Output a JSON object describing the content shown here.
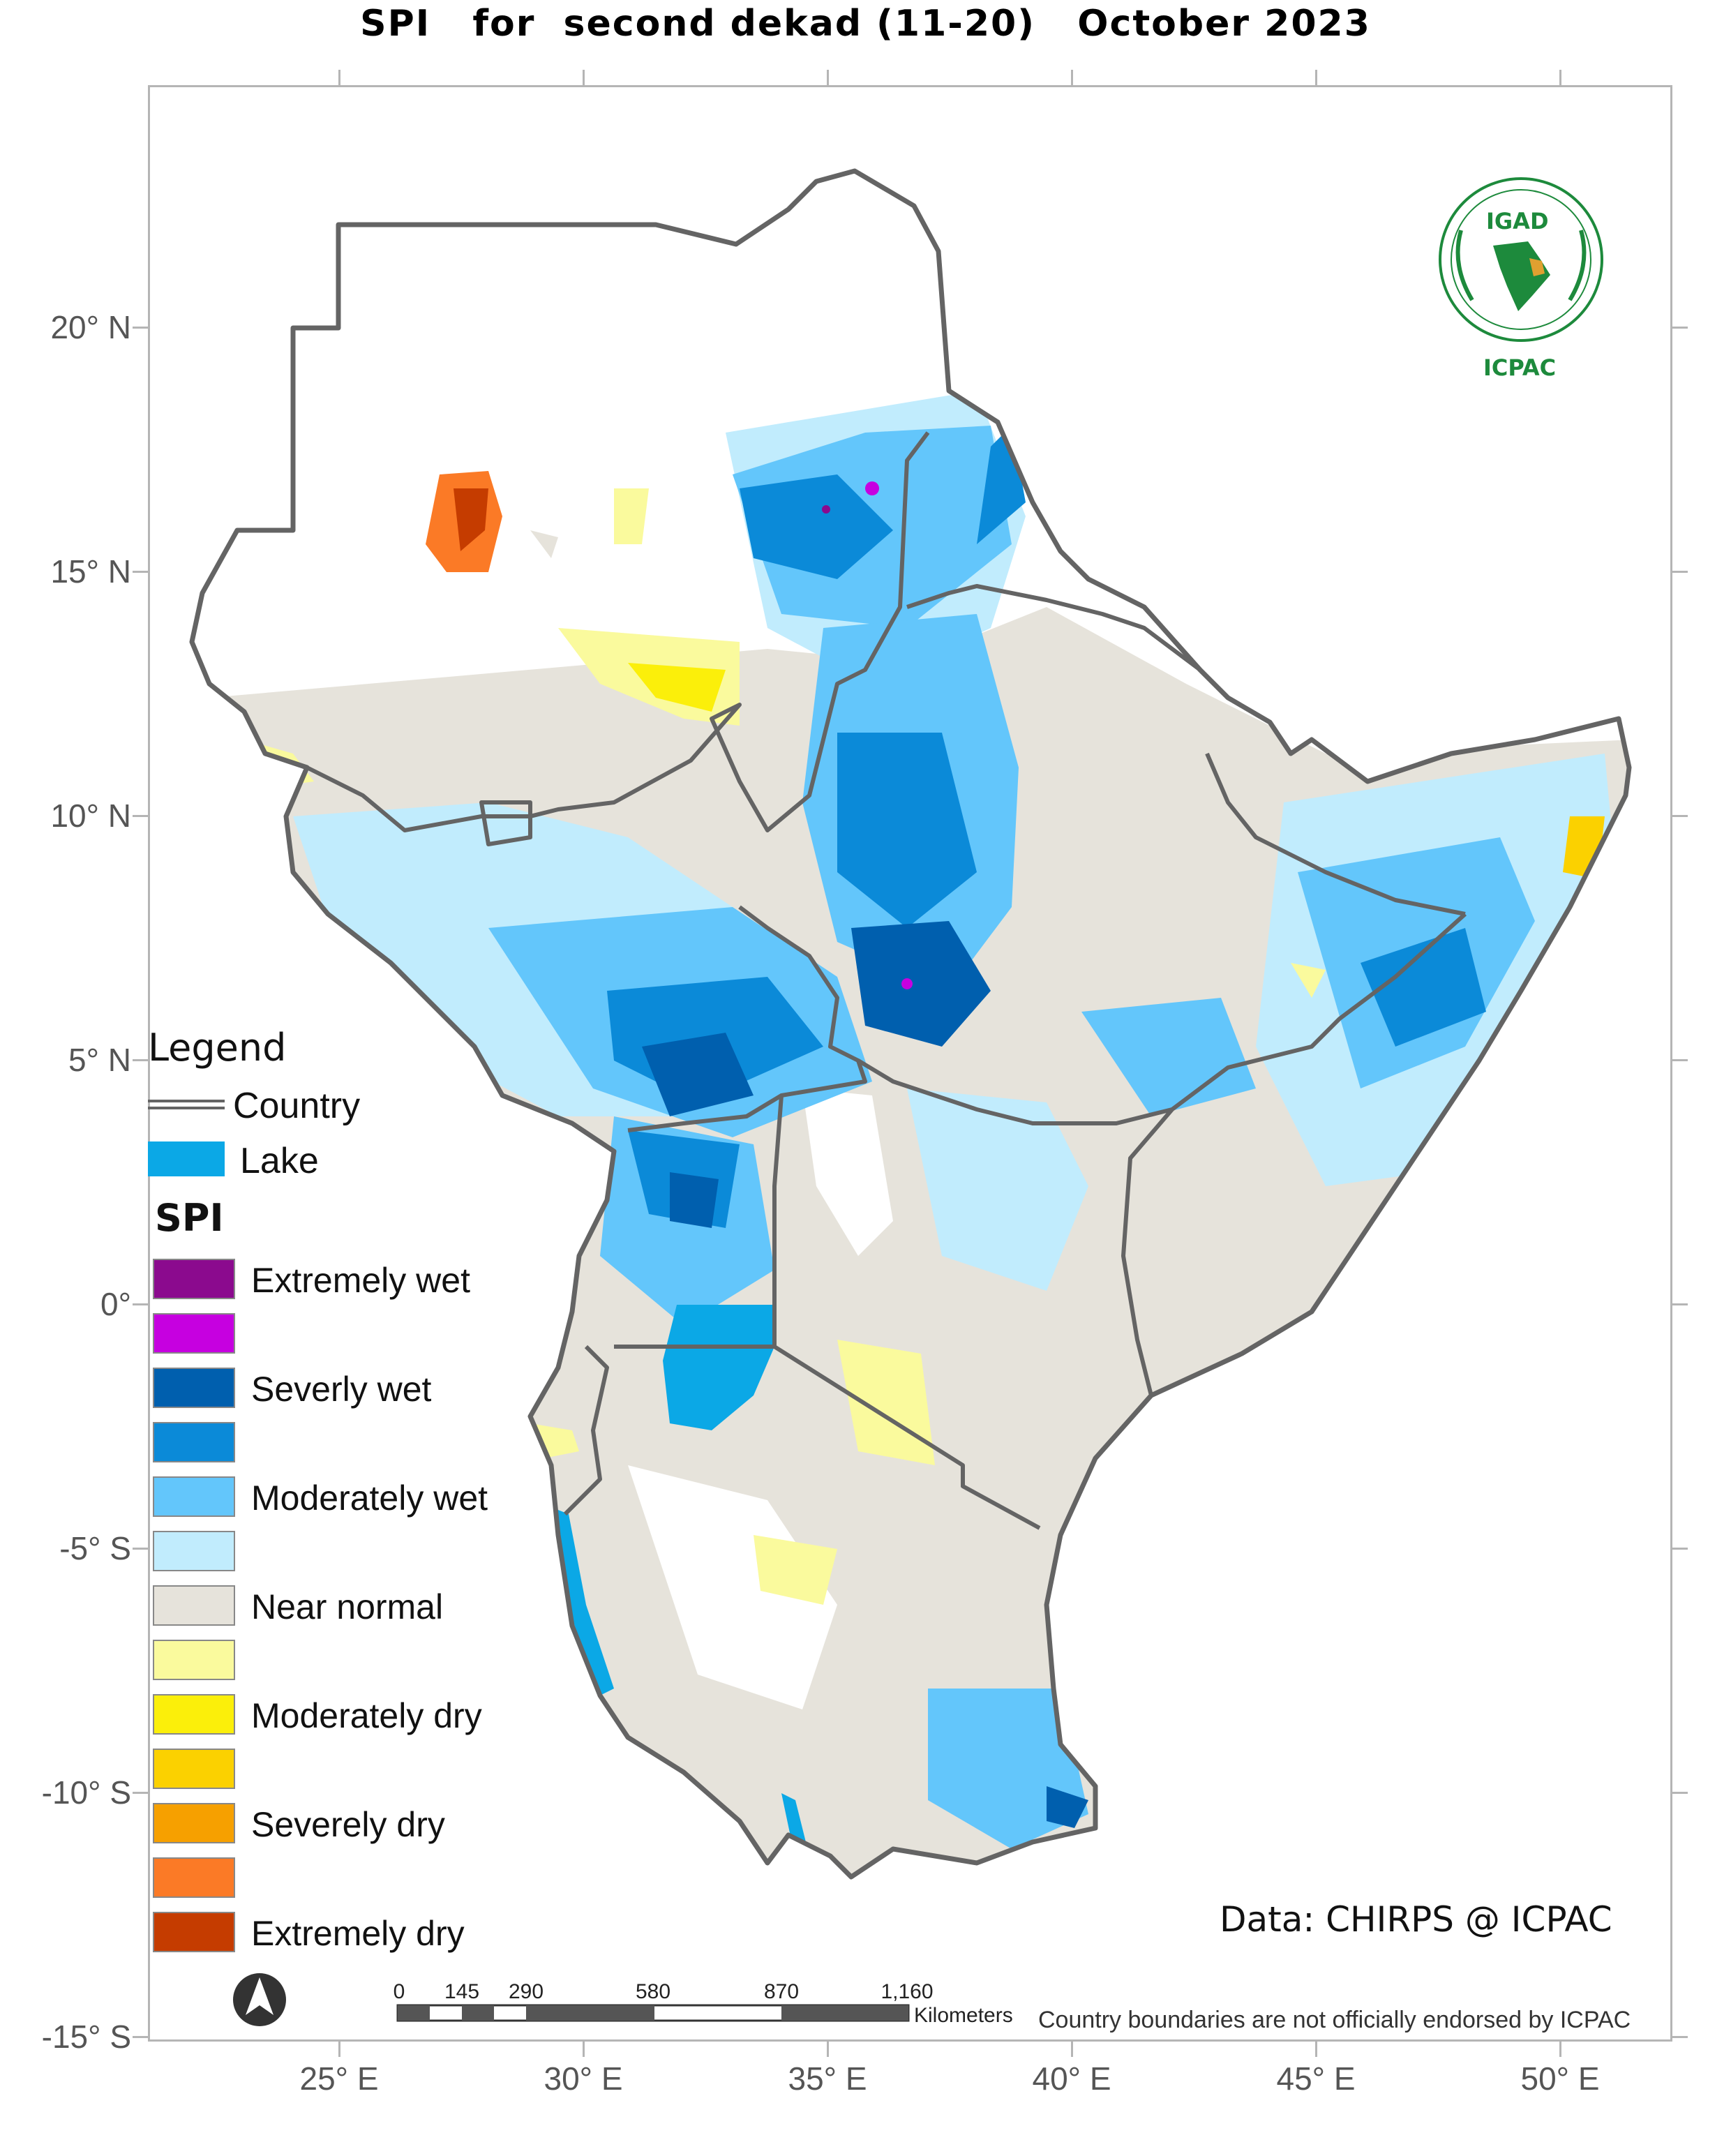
{
  "title": "SPI   for  second dekad (11-20)   October 2023",
  "lat_labels": [
    "20° N",
    "15° N",
    "10° N",
    "5° N",
    "0°",
    "-5° S",
    "-10° S",
    "-15° S"
  ],
  "lon_labels": [
    "25° E",
    "30° E",
    "35° E",
    "40° E",
    "45° E",
    "50° E"
  ],
  "legend": {
    "heading": "Legend",
    "country_label": "Country",
    "lake_label": "Lake",
    "spi_heading": "SPI",
    "classes": [
      {
        "label": "Extremely wet",
        "color": "#8b0a8e"
      },
      {
        "label": "",
        "color": "#c600e0"
      },
      {
        "label": "Severly wet",
        "color": "#005fae"
      },
      {
        "label": "",
        "color": "#0b8ad8"
      },
      {
        "label": "Moderately wet",
        "color": "#63c6fb"
      },
      {
        "label": "",
        "color": "#c1ecfd"
      },
      {
        "label": "Near normal",
        "color": "#e6e3db"
      },
      {
        "label": "",
        "color": "#fafa9d"
      },
      {
        "label": "Moderately dry",
        "color": "#fbef0a"
      },
      {
        "label": "",
        "color": "#fbd100"
      },
      {
        "label": "Severely dry",
        "color": "#f6a000"
      },
      {
        "label": "",
        "color": "#fb7a26"
      },
      {
        "label": "Extremely dry",
        "color": "#c53c00"
      }
    ],
    "lake_color": "#0ba8e6",
    "country_color": "#646464"
  },
  "logo": {
    "top_text": "IGAD",
    "bottom_text": "ICPAC",
    "icon": "igad-icpac-emblem",
    "color": "#1d8a3c"
  },
  "north_arrow_icon": "north-arrow-icon",
  "scale_bar": {
    "ticks": [
      "0",
      "145",
      "290",
      "580",
      "870",
      "1,160"
    ],
    "unit": "Kilometers"
  },
  "credit": "Data: CHIRPS @ ICPAC",
  "disclaimer": "Country boundaries are not officially endorsed by ICPAC"
}
